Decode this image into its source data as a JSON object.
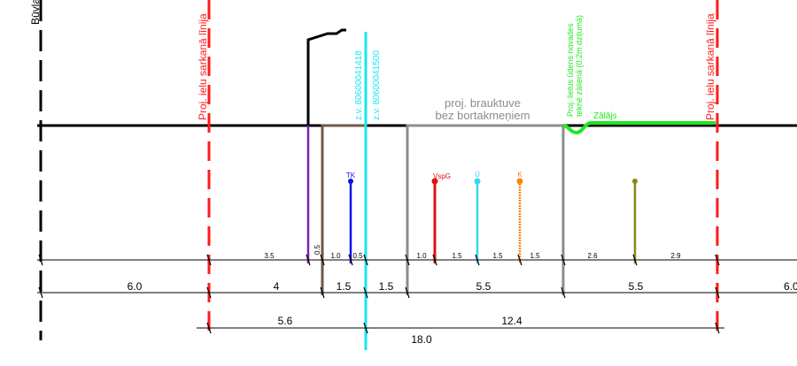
{
  "labels": {
    "building_line": "Būvlaide",
    "red_line_left": "Proj. ielu sarkanā līnija",
    "red_line_right": "Proj. ielu sarkanā līnija",
    "cable_1": "z.v. 80600041418",
    "cable_2": "z.v. 80600041500",
    "roadway_line1": "proj. brauktuve",
    "roadway_line2": "bez bortakmeņiem",
    "rain_line1": "Proj. lietus ūdens novades",
    "rain_line2": "teknē zālienā (0.2m dziļumā)",
    "green_zone": "Zālājs"
  },
  "utilities": {
    "tk": "TK",
    "vspg": "VspG",
    "u": "Ū",
    "k": "K"
  },
  "dimensions": {
    "row1": [
      "3.5",
      "0.5",
      "1.0",
      "0.5",
      "1.0",
      "1.5",
      "1.5",
      "1.5",
      "2.6",
      "2.9"
    ],
    "row2": [
      "6.0",
      "4",
      "1.5",
      "1.5",
      "5.5",
      "5.5",
      "6.0"
    ],
    "row3": [
      "5.6",
      "12.4"
    ],
    "total": "18.0"
  },
  "colors": {
    "red_line": "#ff1a1a",
    "cyan": "#1ae5f0",
    "green": "#22e622",
    "gray": "#8c8c8c",
    "brown": "#6e5a4a",
    "purple": "#7d1fb0",
    "blue": "#0a12e6",
    "red_pipe": "#e01010",
    "light_blue": "#38d7f2",
    "orange": "#f5860f",
    "olive": "#86861a"
  }
}
